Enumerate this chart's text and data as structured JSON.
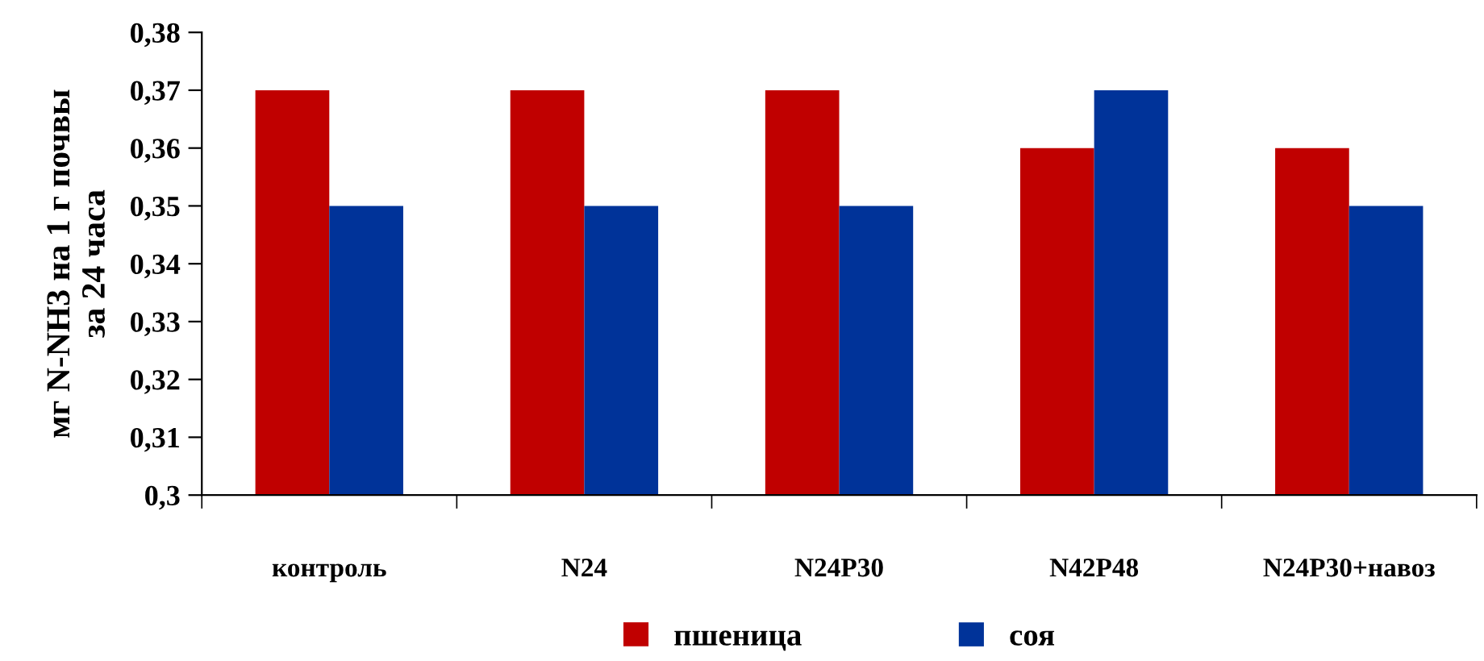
{
  "chart_data": {
    "type": "bar",
    "ylabel": "мг N-NH3 на 1 г почвы\nза 24 часа",
    "categories": [
      "контроль",
      "N24",
      "N24P30",
      "N42P48",
      "N24P30+навоз"
    ],
    "series": [
      {
        "name": "пшеница",
        "color": "#c00000",
        "values": [
          0.37,
          0.37,
          0.37,
          0.36,
          0.36
        ]
      },
      {
        "name": "соя",
        "color": "#003399",
        "values": [
          0.35,
          0.35,
          0.35,
          0.37,
          0.35
        ]
      }
    ],
    "ylim": [
      0.3,
      0.38
    ],
    "yticks": [
      {
        "value": 0.3,
        "label": "0,3"
      },
      {
        "value": 0.31,
        "label": "0,31"
      },
      {
        "value": 0.32,
        "label": "0,32"
      },
      {
        "value": 0.33,
        "label": "0,33"
      },
      {
        "value": 0.34,
        "label": "0,34"
      },
      {
        "value": 0.35,
        "label": "0,35"
      },
      {
        "value": 0.36,
        "label": "0,36"
      },
      {
        "value": 0.37,
        "label": "0,37"
      },
      {
        "value": 0.38,
        "label": "0,38"
      }
    ],
    "grid": false,
    "legend": "bottom"
  }
}
